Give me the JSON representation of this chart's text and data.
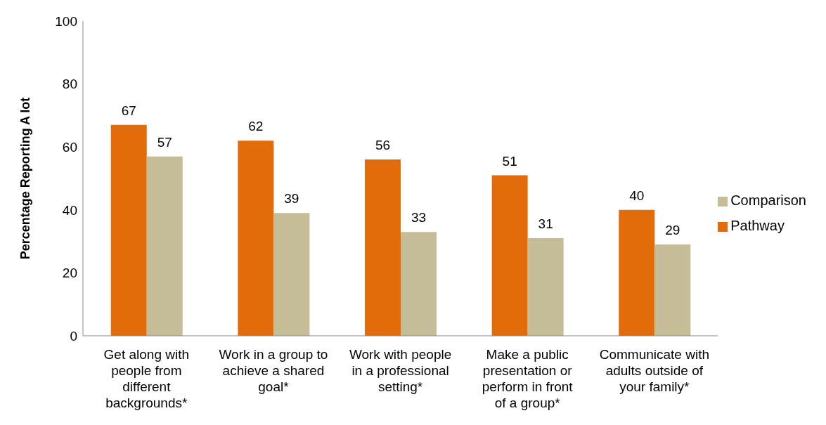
{
  "chart_data": {
    "type": "bar",
    "ylabel": "Percentage Reporting A lot",
    "categories": [
      "Get along with people from different backgrounds*",
      "Work in a group to achieve a shared goal*",
      "Work with people in a professional setting*",
      "Make a public presentation or perform in front of a group*",
      "Communicate with adults outside of your family*"
    ],
    "series": [
      {
        "name": "Pathway",
        "color": "#e36c0a",
        "values": [
          67,
          62,
          56,
          51,
          40
        ]
      },
      {
        "name": "Comparison",
        "color": "#c4bd97",
        "values": [
          57,
          39,
          33,
          31,
          29
        ]
      }
    ],
    "ylim": [
      0,
      100
    ],
    "yticks": [
      0,
      20,
      40,
      60,
      80,
      100
    ],
    "grid": false,
    "legend": "right",
    "data_labels": true
  }
}
